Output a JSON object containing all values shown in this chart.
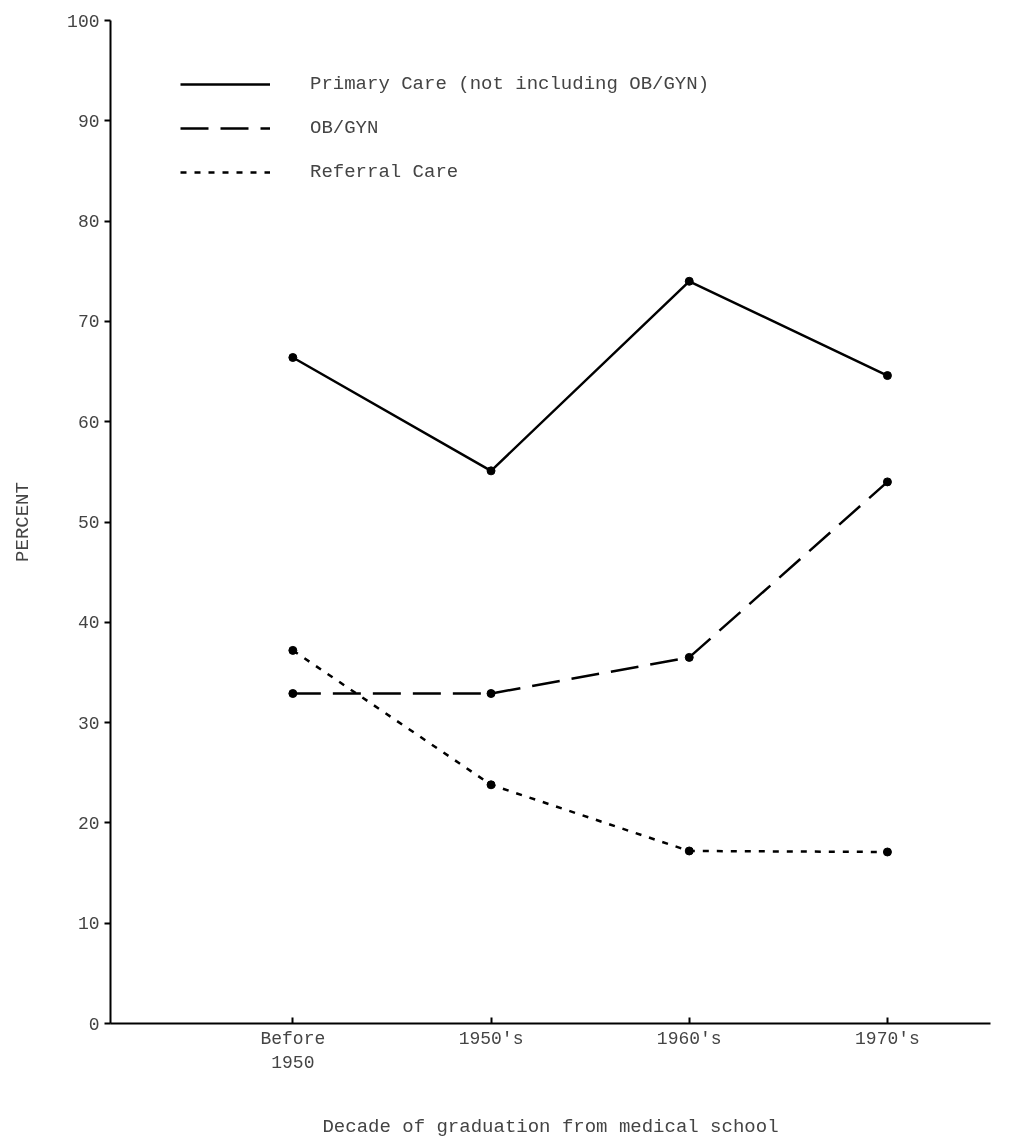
{
  "chart_data": {
    "type": "line",
    "xlabel": "Decade of graduation from medical school",
    "ylabel": "PERCENT",
    "categories": [
      "Before\n1950",
      "1950's",
      "1960's",
      "1970's"
    ],
    "ylim": [
      0,
      100
    ],
    "yticks": [
      0,
      10,
      20,
      30,
      40,
      50,
      60,
      70,
      80,
      90,
      100
    ],
    "series": [
      {
        "name": "Primary Care (not including OB/GYN)",
        "color": "#000000",
        "line_style": "solid",
        "values": [
          66.4,
          55.1,
          74.0,
          64.6
        ]
      },
      {
        "name": "OB/GYN",
        "color": "#000000",
        "line_style": "dashed",
        "values": [
          32.9,
          32.9,
          36.5,
          54.0
        ]
      },
      {
        "name": "Referral Care",
        "color": "#000000",
        "line_style": "dotted",
        "values": [
          37.2,
          23.8,
          17.2,
          17.1
        ]
      }
    ],
    "marker": "circle",
    "grid": false,
    "legend": "top"
  }
}
